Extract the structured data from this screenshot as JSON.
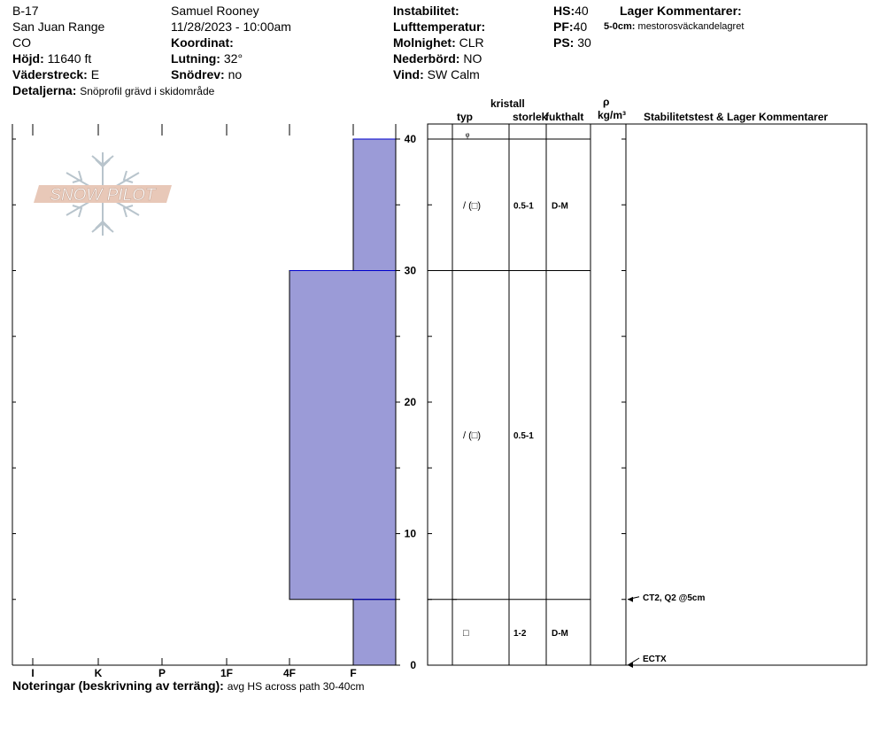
{
  "header": {
    "site": "B-17",
    "range": "San Juan Range",
    "state": "CO",
    "elevation_label": "Höjd:",
    "elevation_value": "11640 ft",
    "aspect_label": "Väderstreck:",
    "aspect_value": "E",
    "details_label": "Detaljerna:",
    "details_value": "Snöprofil grävd i skidområde",
    "observer": "Samuel  Rooney",
    "datetime": "11/28/2023 - 10:00am",
    "coord_label": "Koordinat:",
    "coord_value": "",
    "slope_label": "Lutning:",
    "slope_value": "32°",
    "drift_label": "Snödrev:",
    "drift_value": "no",
    "instability_label": "Instabilitet:",
    "instability_value": "",
    "airtemp_label": "Lufttemperatur:",
    "airtemp_value": "",
    "sky_label": "Molnighet:",
    "sky_value": "CLR",
    "precip_label": "Nederbörd:",
    "precip_value": "NO",
    "wind_label": "Vind:",
    "wind_value": "SW Calm",
    "hs_label": "HS:",
    "hs_value": "40",
    "pf_label": "PF:",
    "pf_value": "40",
    "ps_label": "PS:",
    "ps_value": "30",
    "layer_comments_label": "Lager Kommentarer:",
    "layer_comment_depth": "5-0cm:",
    "layer_comment_text": "mestorosväckandelagret"
  },
  "columns": {
    "crystal": "kristall",
    "type": "typ",
    "size": "storlek",
    "moisture": "fukthalt",
    "density_symbol": "ρ",
    "density_unit": "kg/m³",
    "stability": "Stabilitetstest & Lager Kommentarer"
  },
  "notes": {
    "label": "Noteringar (beskrivning av terräng):",
    "value": "avg HS across path 30-40cm"
  },
  "logo": {
    "text": "SNOW PILOT"
  },
  "colors": {
    "hardness_fill": "#9b9bd7",
    "hardness_edge": "#0000cc",
    "logo": "#e8c8b8"
  },
  "chart_data": {
    "type": "bar",
    "orientation": "horizontal",
    "x_categories": [
      "I",
      "K",
      "P",
      "1F",
      "4F",
      "F"
    ],
    "y_ticks": [
      0,
      10,
      20,
      30,
      40
    ],
    "ylim": [
      0,
      40
    ],
    "layers": [
      {
        "top": 40,
        "bottom": 30,
        "hardness": "F",
        "crystal": "/ (□)",
        "size": "0.5-1",
        "moisture": "D-M"
      },
      {
        "top": 30,
        "bottom": 5,
        "hardness": "4F",
        "crystal": "/ (□)",
        "size": "0.5-1",
        "moisture": ""
      },
      {
        "top": 5,
        "bottom": 0,
        "hardness": "F",
        "crystal": "□",
        "size": "1-2",
        "moisture": "D-M"
      }
    ],
    "surface_symbol": "ᵩ",
    "tests": [
      {
        "depth": 5,
        "label": "CT2, Q2 @5cm"
      },
      {
        "depth": 0,
        "label": "ECTX"
      }
    ]
  }
}
